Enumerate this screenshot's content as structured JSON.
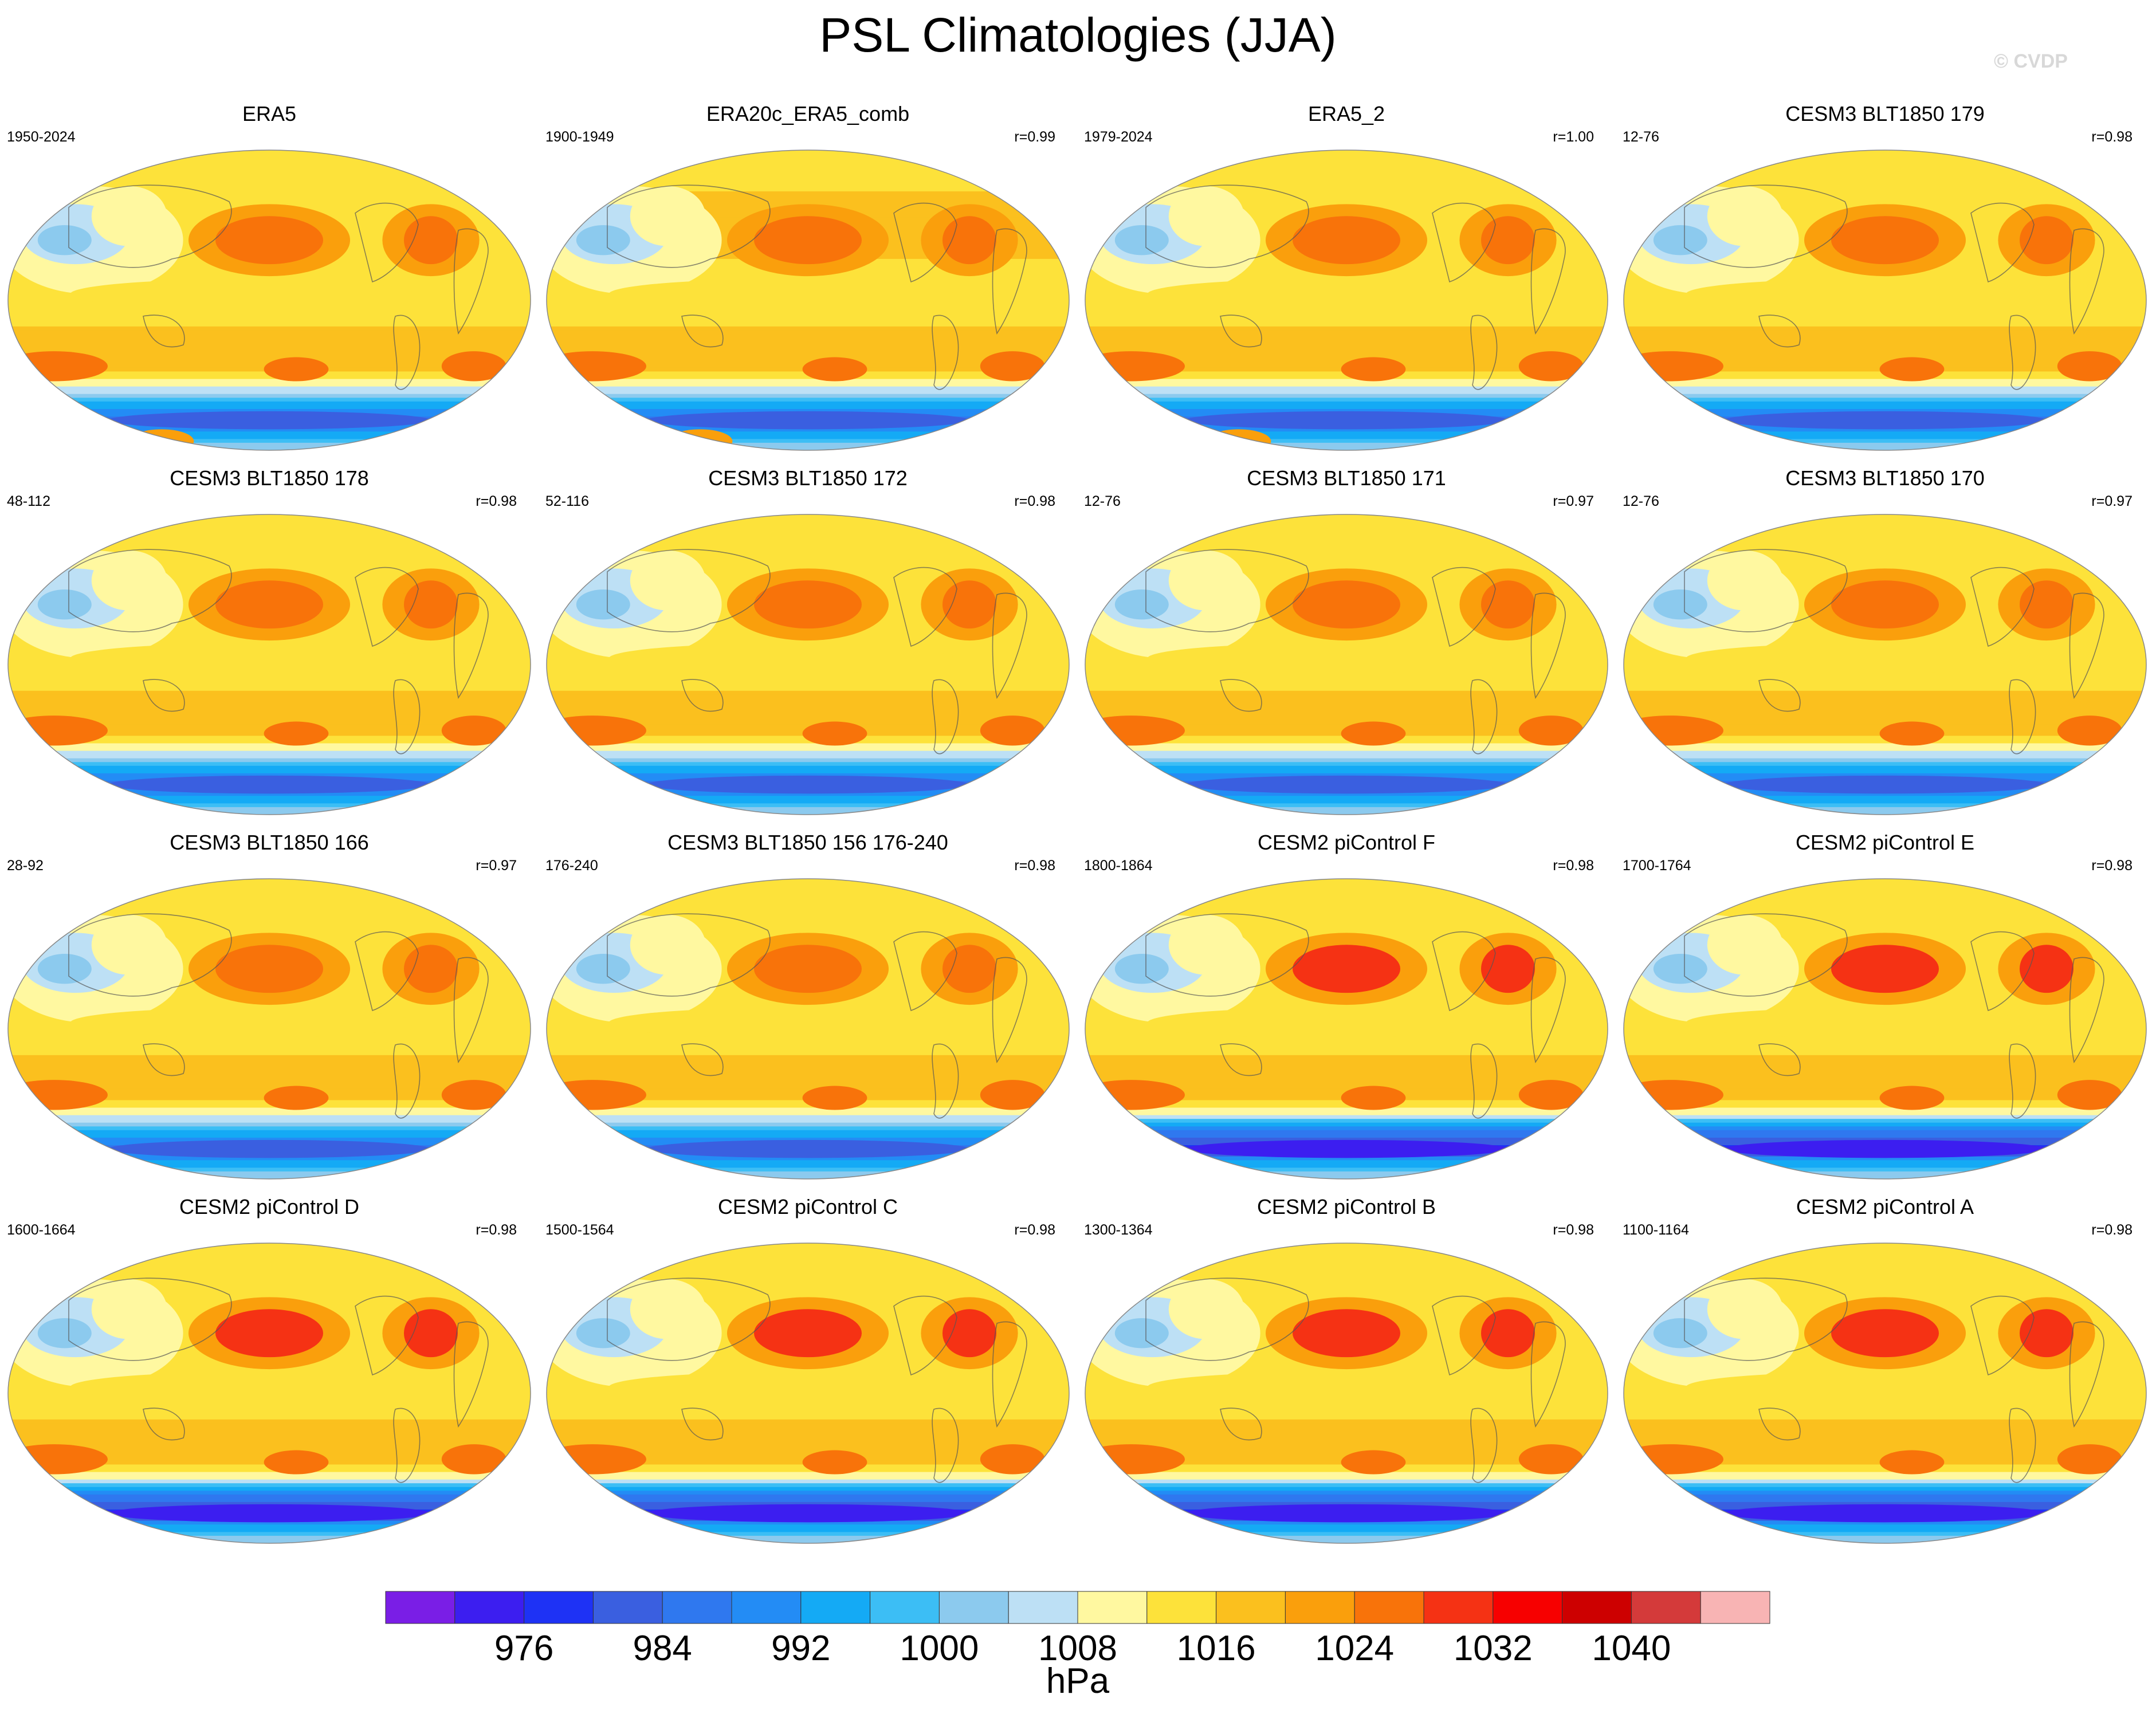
{
  "title": "PSL Climatologies (JJA)",
  "watermark": "© CVDP",
  "panels": [
    {
      "title": "ERA5",
      "years": "1950-2024",
      "r": "",
      "vs": "era"
    },
    {
      "title": "ERA20c_ERA5_comb",
      "years": "1900-1949",
      "r": "r=0.99",
      "vs": "era20c"
    },
    {
      "title": "ERA5_2",
      "years": "1979-2024",
      "r": "r=1.00",
      "vs": "era"
    },
    {
      "title": "CESM3 BLT1850 179",
      "years": "12-76",
      "r": "r=0.98",
      "vs": "cesm3"
    },
    {
      "title": "CESM3 BLT1850 178",
      "years": "48-112",
      "r": "r=0.98",
      "vs": "cesm3"
    },
    {
      "title": "CESM3 BLT1850 172",
      "years": "52-116",
      "r": "r=0.98",
      "vs": "cesm3"
    },
    {
      "title": "CESM3 BLT1850 171",
      "years": "12-76",
      "r": "r=0.97",
      "vs": "cesm3"
    },
    {
      "title": "CESM3 BLT1850 170",
      "years": "12-76",
      "r": "r=0.97",
      "vs": "cesm3"
    },
    {
      "title": "CESM3 BLT1850 166",
      "years": "28-92",
      "r": "r=0.97",
      "vs": "cesm3"
    },
    {
      "title": "CESM3 BLT1850 156 176-240",
      "years": "176-240",
      "r": "r=0.98",
      "vs": "cesm3"
    },
    {
      "title": "CESM2 piControl F",
      "years": "1800-1864",
      "r": "r=0.98",
      "vs": "cesm2"
    },
    {
      "title": "CESM2 piControl E",
      "years": "1700-1764",
      "r": "r=0.98",
      "vs": "cesm2"
    },
    {
      "title": "CESM2 piControl D",
      "years": "1600-1664",
      "r": "r=0.98",
      "vs": "cesm2"
    },
    {
      "title": "CESM2 piControl C",
      "years": "1500-1564",
      "r": "r=0.98",
      "vs": "cesm2"
    },
    {
      "title": "CESM2 piControl B",
      "years": "1300-1364",
      "r": "r=0.98",
      "vs": "cesm2"
    },
    {
      "title": "CESM2 piControl A",
      "years": "1100-1164",
      "r": "r=0.98",
      "vs": "cesm2"
    }
  ],
  "chart_data": {
    "type": "heatmap",
    "variable": "PSL",
    "season": "JJA",
    "units": "hPa",
    "projection": "robinson-like",
    "colorbar": {
      "label": "hPa",
      "levels": [
        972,
        976,
        980,
        984,
        988,
        992,
        996,
        1000,
        1004,
        1008,
        1012,
        1016,
        1020,
        1024,
        1028,
        1032,
        1036,
        1040,
        1044
      ],
      "tick_labels": [
        "976",
        "984",
        "992",
        "1000",
        "1008",
        "1016",
        "1024",
        "1032",
        "1040"
      ],
      "tick_values": [
        976,
        984,
        992,
        1000,
        1008,
        1016,
        1024,
        1032,
        1040
      ],
      "colors": [
        "#7a1ee6",
        "#3c1ef0",
        "#1e32f5",
        "#3a5fe0",
        "#2f78ef",
        "#238cf5",
        "#14aaf5",
        "#3cbef5",
        "#8ccaee",
        "#bde0f5",
        "#fff8a0",
        "#fde23a",
        "#fbc01e",
        "#fa9f0c",
        "#f8730a",
        "#f53214",
        "#f70000",
        "#cd0000",
        "#d43a3a",
        "#f8b4b4"
      ]
    },
    "features_hPa": {
      "north_pacific_high_max": 1024,
      "north_atlantic_high_max": 1024,
      "southern_subtropical_highs": 1020,
      "asian_monsoon_low": 1002,
      "southern_ocean_trough_min": 980
    }
  }
}
